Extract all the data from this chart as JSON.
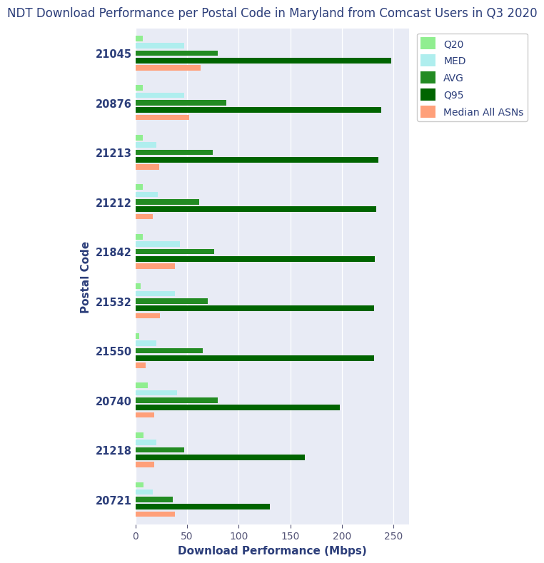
{
  "title": "NDT Download Performance per Postal Code in Maryland from Comcast Users in Q3 2020",
  "xlabel": "Download Performance (Mbps)",
  "ylabel": "Postal Code",
  "postal_codes": [
    "21045",
    "20876",
    "21213",
    "21212",
    "21842",
    "21532",
    "21550",
    "20740",
    "21218",
    "20721"
  ],
  "series": {
    "Q20": [
      7,
      7,
      7,
      7,
      7,
      5,
      4,
      12,
      8,
      8
    ],
    "MED": [
      47,
      47,
      20,
      22,
      43,
      38,
      20,
      40,
      20,
      17
    ],
    "AVG": [
      80,
      88,
      75,
      62,
      76,
      70,
      65,
      80,
      47,
      36
    ],
    "Q95": [
      248,
      238,
      235,
      233,
      232,
      231,
      231,
      198,
      164,
      130
    ],
    "Median All ASNs": [
      63,
      52,
      23,
      17,
      38,
      24,
      10,
      18,
      18,
      38
    ]
  },
  "colors": {
    "Q20": "#90EE90",
    "MED": "#AFEEEE",
    "AVG": "#228B22",
    "Q95": "#006400",
    "Median All ASNs": "#FFA07A"
  },
  "background_color": "#E8EBF5",
  "figure_background": "#FFFFFF",
  "xlim": [
    0,
    265
  ],
  "title_color": "#2C3E7A",
  "axis_label_color": "#2C3E7A",
  "tick_color": "#555577"
}
